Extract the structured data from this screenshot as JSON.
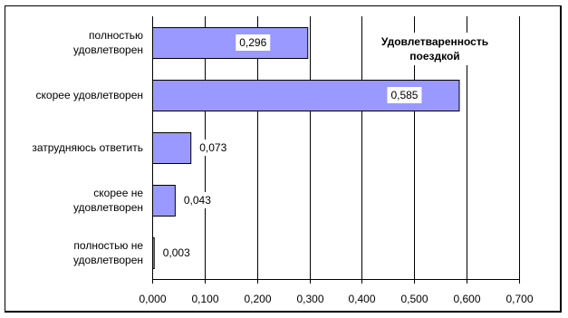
{
  "chart_data": {
    "type": "bar",
    "orientation": "horizontal",
    "title_lines": [
      "Удовлетваренность",
      "поездкой"
    ],
    "categories": [
      [
        "полностью",
        "удовлетворен"
      ],
      [
        "скорее удовлетворен"
      ],
      [
        "затрудняюсь ответить"
      ],
      [
        "скорее не",
        "удовлетворен"
      ],
      [
        "полностью не",
        "удовлетворен"
      ]
    ],
    "values": [
      0.296,
      0.585,
      0.073,
      0.043,
      0.003
    ],
    "data_labels": [
      "0,296",
      "0,585",
      "0,073",
      "0,043",
      "0,003"
    ],
    "x_ticks": [
      "0,000",
      "0,100",
      "0,200",
      "0,300",
      "0,400",
      "0,500",
      "0,600",
      "0,700"
    ],
    "xlim": [
      0,
      0.7
    ],
    "gridlines": "vertical",
    "bar_color": "#9999ff",
    "bar_border": "#000000"
  }
}
